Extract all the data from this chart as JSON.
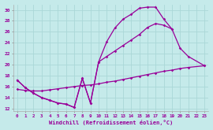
{
  "xlabel": "Windchill (Refroidissement éolien,°C)",
  "xlim": [
    -0.5,
    23.5
  ],
  "ylim": [
    11.5,
    31.0
  ],
  "xticks": [
    0,
    1,
    2,
    3,
    4,
    5,
    6,
    7,
    8,
    9,
    10,
    11,
    12,
    13,
    14,
    15,
    16,
    17,
    18,
    19,
    20,
    21,
    22,
    23
  ],
  "yticks": [
    12,
    14,
    16,
    18,
    20,
    22,
    24,
    26,
    28,
    30
  ],
  "background_color": "#c5eaea",
  "line_color": "#990099",
  "grid_color": "#aad8d8",
  "line1_x": [
    0,
    1,
    2,
    3,
    4,
    5,
    6,
    7,
    8,
    9,
    10,
    11,
    12,
    13,
    14,
    15,
    16,
    17,
    18,
    19
  ],
  "line1_y": [
    17.2,
    15.8,
    14.8,
    14.0,
    13.5,
    13.0,
    12.8,
    12.2,
    17.5,
    13.0,
    20.5,
    24.2,
    26.7,
    28.3,
    29.2,
    30.3,
    30.5,
    30.5,
    28.3,
    26.5
  ],
  "line2_x": [
    0,
    1,
    2,
    3,
    4,
    5,
    6,
    7,
    8,
    9,
    10,
    11,
    12,
    13,
    14,
    15,
    16,
    17,
    18,
    19,
    20,
    21,
    23
  ],
  "line2_y": [
    17.2,
    15.8,
    14.8,
    14.0,
    13.5,
    13.0,
    12.8,
    12.2,
    17.5,
    13.0,
    20.5,
    21.5,
    22.5,
    23.5,
    24.5,
    25.5,
    26.8,
    27.5,
    27.2,
    26.5,
    23.0,
    21.5,
    19.8
  ],
  "line3_x": [
    0,
    1,
    2,
    3,
    4,
    5,
    6,
    7,
    8,
    9,
    10,
    11,
    12,
    13,
    14,
    15,
    16,
    17,
    18,
    19,
    20,
    21,
    23
  ],
  "line3_y": [
    15.5,
    15.3,
    15.2,
    15.2,
    15.4,
    15.6,
    15.8,
    16.0,
    16.2,
    16.3,
    16.5,
    16.8,
    17.0,
    17.3,
    17.6,
    17.9,
    18.2,
    18.5,
    18.8,
    19.0,
    19.3,
    19.5,
    19.8
  ]
}
